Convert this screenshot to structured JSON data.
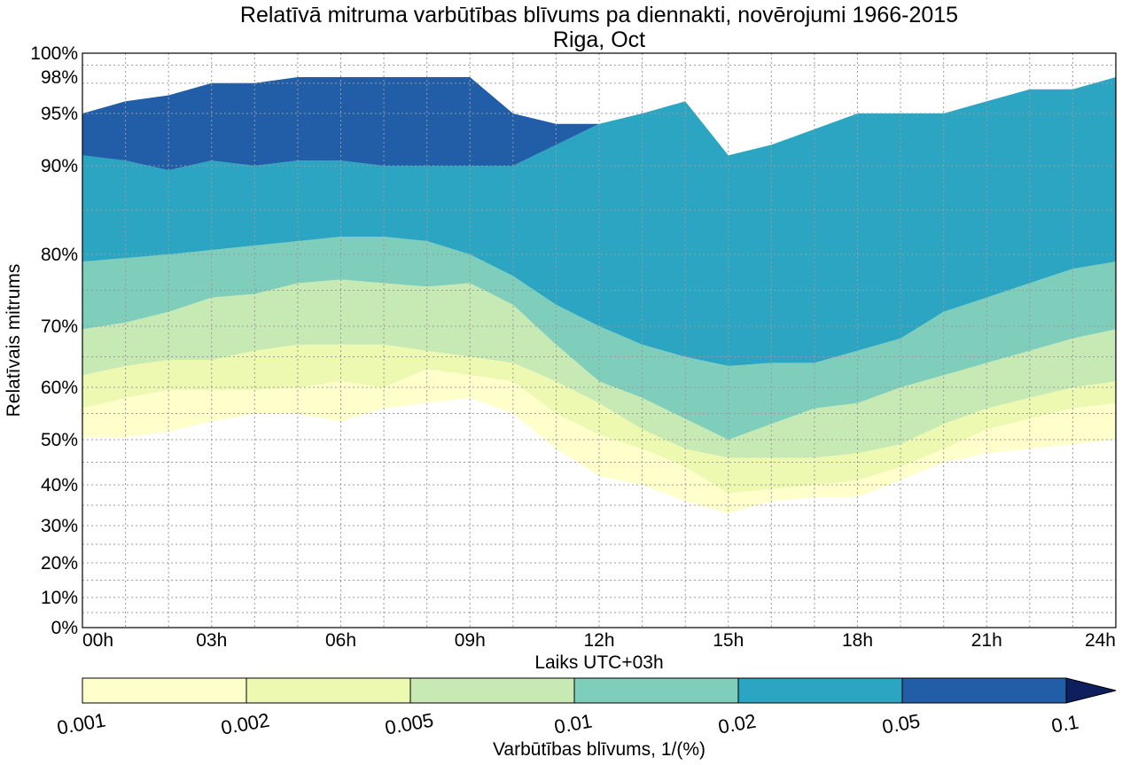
{
  "chart_data": {
    "type": "contour",
    "title": "Relatīvā mitruma varbūtības blīvums pa diennakti, novērojumi 1966-2015",
    "subtitle": "Riga, Oct",
    "xlabel": "Laiks UTC+03h",
    "ylabel": "Relatīvais mitrums",
    "x_ticks": [
      "00h",
      "03h",
      "06h",
      "09h",
      "12h",
      "15h",
      "18h",
      "21h",
      "24h"
    ],
    "x_range_hours": [
      0,
      24
    ],
    "y_ticks": [
      "0%",
      "10%",
      "20%",
      "30%",
      "40%",
      "50%",
      "60%",
      "70%",
      "80%",
      "90%",
      "95%",
      "98%",
      "100%"
    ],
    "y_range_percent": [
      0,
      100
    ],
    "grid": true,
    "colorbar": {
      "label": "Varbūtības blīvums, 1/(%)",
      "levels": [
        "0.001",
        "0.002",
        "0.005",
        "0.01",
        "0.02",
        "0.05",
        "0.1"
      ],
      "colors": [
        "#ffffcc",
        "#edf8b1",
        "#c7e9b4",
        "#7fcdbb",
        "#2ca5c2",
        "#225ea8",
        "#0d1f5c"
      ],
      "extend": "max"
    },
    "contour_bands": [
      {
        "name": "0.001-0.002",
        "color": "#ffffcc",
        "lower_percent": [
          50.5,
          50.5,
          51.5,
          53.5,
          55,
          55,
          53.5,
          56,
          57,
          58,
          55,
          48,
          42,
          40,
          36,
          33,
          36,
          37,
          37,
          41,
          45,
          47,
          48,
          49,
          50
        ],
        "upper_percent": [
          56,
          58,
          59.5,
          59.5,
          59.5,
          60,
          61,
          60,
          63,
          62,
          61,
          55,
          51,
          48,
          44,
          38,
          39,
          40,
          41,
          44,
          48,
          52,
          54,
          56,
          57
        ]
      },
      {
        "name": "0.002-0.005",
        "color": "#edf8b1",
        "lower_percent": [
          56,
          58,
          59.5,
          59.5,
          59.5,
          60,
          61,
          60,
          63,
          62,
          61,
          55,
          51,
          48,
          44,
          38,
          39,
          40,
          41,
          44,
          48,
          52,
          54,
          56,
          57
        ],
        "upper_percent": [
          62,
          63.5,
          64.5,
          64.5,
          66,
          67,
          67,
          67,
          66,
          65,
          64,
          61,
          57,
          52,
          48,
          46,
          46,
          46,
          47,
          49,
          53,
          56,
          58,
          60,
          61
        ]
      },
      {
        "name": "0.005-0.01",
        "color": "#c7e9b4",
        "lower_percent": [
          62,
          63.5,
          64.5,
          64.5,
          66,
          67,
          67,
          67,
          66,
          65,
          64,
          61,
          57,
          52,
          48,
          46,
          46,
          46,
          47,
          49,
          53,
          56,
          58,
          60,
          61
        ],
        "upper_percent": [
          69.5,
          70.5,
          72,
          74,
          74.5,
          76,
          76.5,
          76,
          75.5,
          76,
          73,
          67,
          61,
          58,
          54,
          50,
          53,
          56,
          57,
          60,
          62,
          64,
          66,
          68,
          69.5
        ]
      },
      {
        "name": "0.01-0.02",
        "color": "#7fcdbb",
        "lower_percent": [
          69.5,
          70.5,
          72,
          74,
          74.5,
          76,
          76.5,
          76,
          75.5,
          76,
          73,
          67,
          61,
          58,
          54,
          50,
          53,
          56,
          57,
          60,
          62,
          64,
          66,
          68,
          69.5
        ],
        "upper_percent": [
          79,
          79.5,
          80,
          80.5,
          81,
          81.5,
          82,
          82,
          81.5,
          80,
          77,
          73,
          70,
          67,
          65,
          63.5,
          64,
          64,
          66,
          68,
          72,
          74,
          76,
          78,
          79
        ]
      },
      {
        "name": "0.02-0.05",
        "color": "#2ca5c2",
        "lower_percent": [
          79,
          79.5,
          80,
          80.5,
          81,
          81.5,
          82,
          82,
          81.5,
          80,
          77,
          73,
          70,
          67,
          65,
          63.5,
          64,
          64,
          66,
          68,
          72,
          74,
          76,
          78,
          79
        ],
        "upper_percent": [
          91,
          90.5,
          89.5,
          90.5,
          90,
          90.5,
          90.5,
          90,
          90,
          90,
          90,
          92,
          94,
          95,
          96,
          91,
          92,
          93.5,
          95,
          95,
          95,
          96,
          97,
          97,
          98
        ]
      },
      {
        "name": "0.05-0.1",
        "color": "#225ea8",
        "lower_percent": [
          91,
          90.5,
          89.5,
          90.5,
          90,
          90.5,
          90.5,
          90,
          90,
          90,
          90,
          92,
          94,
          95,
          96,
          91,
          92,
          93.5,
          95,
          95,
          95,
          96,
          97,
          97,
          98
        ],
        "upper_percent": [
          95,
          96,
          96.5,
          97.5,
          97.5,
          98,
          98,
          98,
          98,
          98,
          95,
          94,
          94,
          95,
          96,
          91,
          92,
          93.5,
          95,
          95,
          95,
          96,
          97,
          97,
          98
        ]
      }
    ]
  }
}
